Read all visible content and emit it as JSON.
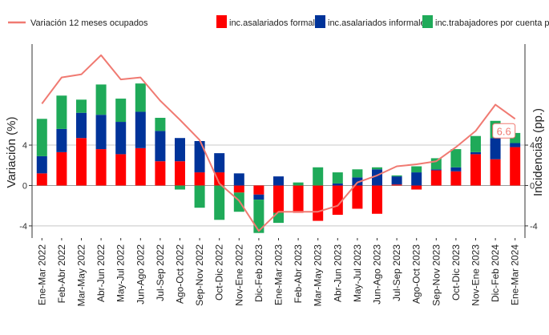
{
  "chart_data": {
    "type": "bar",
    "stacked": true,
    "ylabel": "Variación (%)",
    "y2label": "Incidencias (pp.)",
    "ylim": [
      -5.2,
      14
    ],
    "yticks": [
      -4,
      0,
      4
    ],
    "grid": true,
    "legend_position": "top",
    "categories": [
      "Ene-Mar 2022",
      "Feb-Abr 2022",
      "Mar-May 2022",
      "Abr-Jun 2022",
      "May-Jul 2022",
      "Jun-Ago 2022",
      "Jul-Sep 2022",
      "Ago-Oct 2022",
      "Sep-Nov 2022",
      "Oct-Dic 2022",
      "Nov-Ene 2022",
      "Dic-Feb 2023",
      "Ene-Mar 2023",
      "Feb-Abr 2023",
      "Mar-May 2023",
      "Abr-Jun 2023",
      "May-Jul 2023",
      "Jun-Ago 2023",
      "Jul-Sep 2023",
      "Ago-Oct 2023",
      "Sep-Nov 2023",
      "Oct-Dic 2023",
      "Nov-Ene 2023",
      "Dic-Feb 2024",
      "Ene-Mar 2024"
    ],
    "series": [
      {
        "name": "inc.asalariados formales",
        "color": "#ff0000",
        "values": [
          1.2,
          3.3,
          4.7,
          3.6,
          3.1,
          3.7,
          2.4,
          2.4,
          1.3,
          1.3,
          -0.7,
          -0.9,
          -2.7,
          -2.7,
          -3.5,
          -2.9,
          -2.3,
          -2.8,
          0.1,
          -0.4,
          1.5,
          1.4,
          3.1,
          2.6,
          3.8
        ]
      },
      {
        "name": "inc.asalariados informales",
        "color": "#003399",
        "values": [
          1.7,
          2.3,
          2.5,
          3.4,
          3.2,
          3.6,
          3.0,
          2.3,
          3.1,
          1.9,
          1.2,
          -0.5,
          0.9,
          0.0,
          0.0,
          0.2,
          0.8,
          1.6,
          0.8,
          1.3,
          0.1,
          0.4,
          0.2,
          2.1,
          0.4
        ]
      },
      {
        "name": "inc.trabajadores por cuenta propia",
        "color": "#1faa59",
        "values": [
          3.7,
          3.3,
          1.3,
          3.0,
          2.3,
          2.8,
          1.3,
          -0.4,
          -2.2,
          -3.4,
          -1.9,
          -3.3,
          -1.0,
          0.3,
          1.8,
          1.1,
          0.8,
          0.2,
          0.1,
          0.6,
          1.1,
          1.8,
          1.6,
          1.7,
          1.0
        ]
      }
    ],
    "line": {
      "name": "Variación 12 meses ocupados",
      "color": "#f07a72",
      "values": [
        8.1,
        10.7,
        11.0,
        12.9,
        10.5,
        10.7,
        8.4,
        6.5,
        4.5,
        0.2,
        -1.5,
        -4.5,
        -2.6,
        -2.6,
        -2.6,
        -2.0,
        0.3,
        1.0,
        1.9,
        2.1,
        2.4,
        3.8,
        5.4,
        8.0,
        6.6
      ]
    },
    "annotation": {
      "label": "6.6",
      "index": 24
    }
  }
}
